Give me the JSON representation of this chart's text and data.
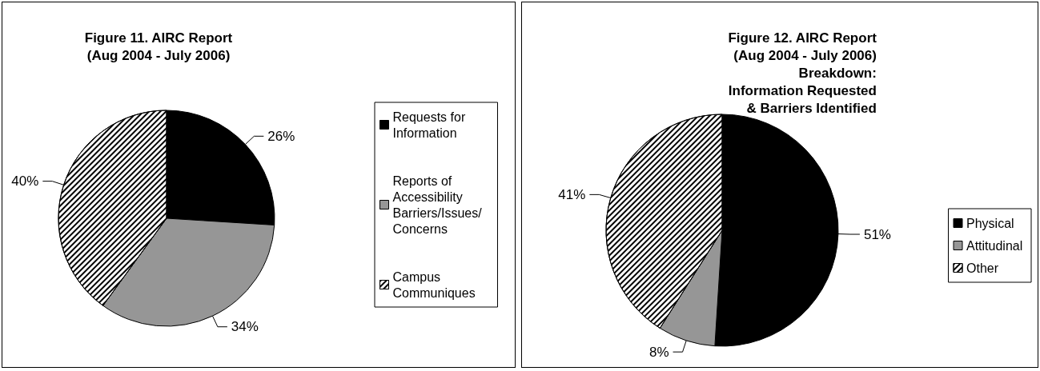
{
  "chart_data": [
    {
      "type": "pie",
      "title": "Figure 11. AIRC Report\n(Aug 2004 - July 2006)",
      "categories": [
        "Requests for Information",
        "Reports of Accessibility Barriers/Issues/ Concerns",
        "Campus Communiques"
      ],
      "values": [
        26,
        34,
        40
      ],
      "colors": [
        "#000000",
        "#969696",
        "#ffffff"
      ],
      "legend": "right",
      "value_labels": [
        "26%",
        "34%",
        "40%"
      ]
    },
    {
      "type": "pie",
      "title": "Figure 12. AIRC Report\n(Aug 2004 - July 2006)\nBreakdown:\nInformation Requested\n& Barriers Identified",
      "categories": [
        "Physical",
        "Attitudinal",
        "Other"
      ],
      "values": [
        51,
        8,
        41
      ],
      "colors": [
        "#000000",
        "#969696",
        "#ffffff"
      ],
      "legend": "right",
      "value_labels": [
        "51%",
        "8%",
        "41%"
      ]
    }
  ]
}
